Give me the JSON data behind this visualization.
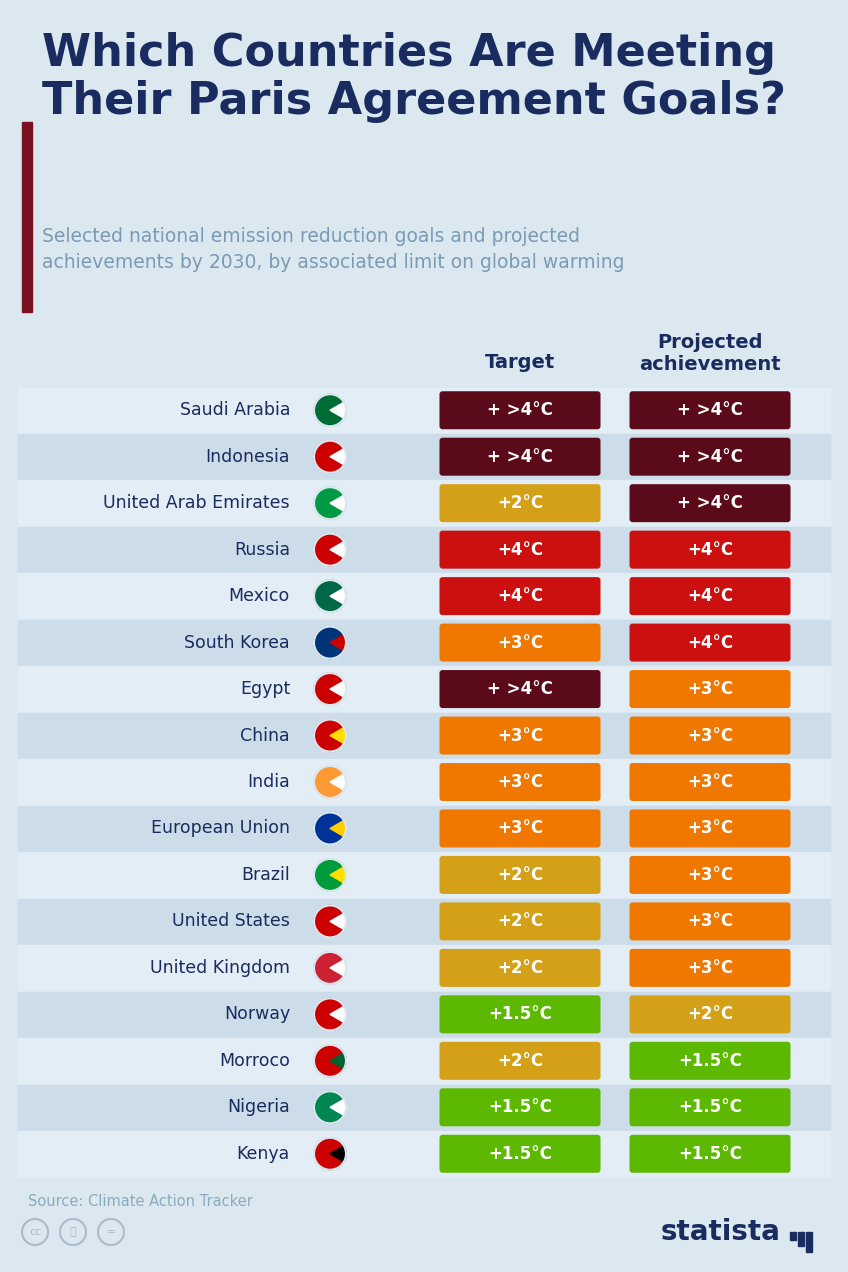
{
  "title": "Which Countries Are Meeting\nTheir Paris Agreement Goals?",
  "subtitle": "Selected national emission reduction goals and projected\nachievements by 2030, by associated limit on global warming",
  "col_header_target": "Target",
  "col_header_proj": "Projected\nachievement",
  "source": "Source: Climate Action Tracker",
  "background_color": "#dce8f0",
  "title_color": "#1a2b5f",
  "subtitle_color": "#7a9ab5",
  "header_color": "#1a2b5f",
  "accent_bar_color": "#7a1020",
  "countries": [
    "Saudi Arabia",
    "Indonesia",
    "United Arab Emirates",
    "Russia",
    "Mexico",
    "South Korea",
    "Egypt",
    "China",
    "India",
    "European Union",
    "Brazil",
    "United States",
    "United Kingdom",
    "Norway",
    "Morroco",
    "Nigeria",
    "Kenya"
  ],
  "targets": [
    "+ >4°C",
    "+ >4°C",
    "+2°C",
    "+4°C",
    "+4°C",
    "+3°C",
    "+ >4°C",
    "+3°C",
    "+3°C",
    "+3°C",
    "+2°C",
    "+2°C",
    "+2°C",
    "+1.5°C",
    "+2°C",
    "+1.5°C",
    "+1.5°C"
  ],
  "projections": [
    "+ >4°C",
    "+ >4°C",
    "+ >4°C",
    "+4°C",
    "+4°C",
    "+4°C",
    "+3°C",
    "+3°C",
    "+3°C",
    "+3°C",
    "+3°C",
    "+3°C",
    "+3°C",
    "+2°C",
    "+1.5°C",
    "+1.5°C",
    "+1.5°C"
  ],
  "target_colors": [
    "#5a0a18",
    "#5a0a18",
    "#d4a017",
    "#cc1010",
    "#cc1010",
    "#f07800",
    "#5a0a18",
    "#f07800",
    "#f07800",
    "#f07800",
    "#d4a017",
    "#d4a017",
    "#d4a017",
    "#5cb800",
    "#d4a017",
    "#5cb800",
    "#5cb800"
  ],
  "projection_colors": [
    "#5a0a18",
    "#5a0a18",
    "#5a0a18",
    "#cc1010",
    "#cc1010",
    "#cc1010",
    "#f07800",
    "#f07800",
    "#f07800",
    "#f07800",
    "#f07800",
    "#f07800",
    "#f07800",
    "#d4a017",
    "#5cb800",
    "#5cb800",
    "#5cb800"
  ],
  "row_colors": [
    "#e2edf5",
    "#ccdce8"
  ],
  "statista_color": "#1a2b5f",
  "flag_colors": [
    [
      "#006c35",
      "#ffffff",
      "#006c35"
    ],
    [
      "#cc0000",
      "#ffffff",
      "#cc0000"
    ],
    [
      "#009a44",
      "#ffffff",
      "#cc0000"
    ],
    [
      "#cc0000",
      "#ffffff",
      "#0033a0"
    ],
    [
      "#006847",
      "#ffffff",
      "#cc0000"
    ],
    [
      "#003478",
      "#cc0000",
      "#ffffff"
    ],
    [
      "#cc0000",
      "#ffffff",
      "#000000"
    ],
    [
      "#cc0000",
      "#ffde00",
      "#cc0000"
    ],
    [
      "#ff9933",
      "#ffffff",
      "#138808"
    ],
    [
      "#003399",
      "#ffcc00",
      "#003399"
    ],
    [
      "#009c3b",
      "#ffdf00",
      "#009c3b"
    ],
    [
      "#cc0000",
      "#ffffff",
      "#002868"
    ],
    [
      "#cc2233",
      "#ffffff",
      "#002868"
    ],
    [
      "#cc0000",
      "#ffffff",
      "#003f87"
    ],
    [
      "#cc0000",
      "#006233",
      "#cc0000"
    ],
    [
      "#008751",
      "#ffffff",
      "#008751"
    ],
    [
      "#cc0000",
      "#000000",
      "#006600"
    ]
  ]
}
